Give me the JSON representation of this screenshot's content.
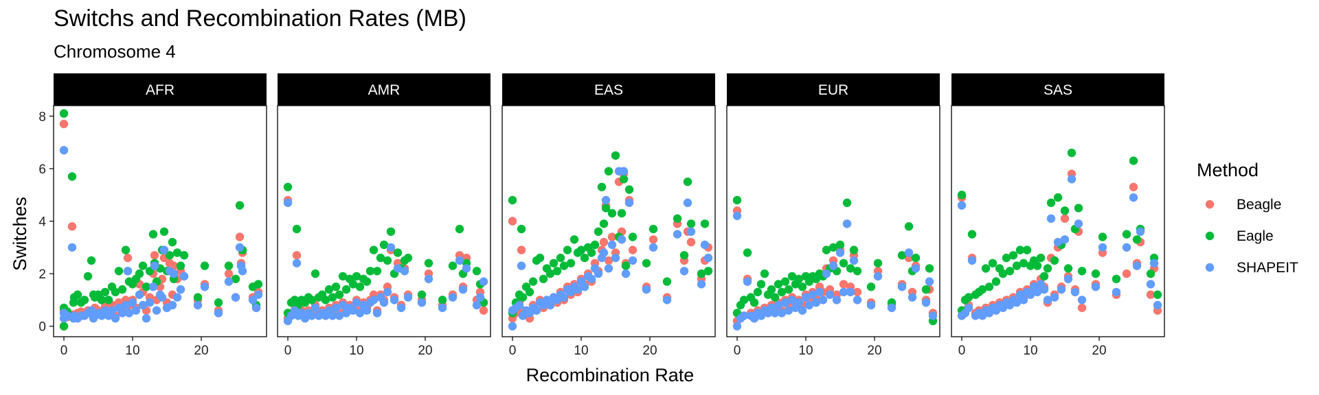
{
  "chart_data": {
    "type": "scatter",
    "title": "Switchs and Recombination Rates (MB)",
    "subtitle": "Chromosome 4",
    "xlabel": "Recombination Rate",
    "ylabel": "Switches",
    "xlim": [
      -1.5,
      29.5
    ],
    "ylim": [
      -0.4,
      8.4
    ],
    "xticks": [
      0,
      10,
      20
    ],
    "yticks": [
      0,
      2,
      4,
      6,
      8
    ],
    "grid": false,
    "legend": {
      "title": "Method",
      "position": "right"
    },
    "facets": [
      "AFR",
      "AMR",
      "EAS",
      "EUR",
      "SAS"
    ],
    "series": [
      {
        "name": "Beagle",
        "color": "#F8766D"
      },
      {
        "name": "Eagle",
        "color": "#00BA38"
      },
      {
        "name": "SHAPEIT",
        "color": "#619CFF"
      }
    ],
    "points": {
      "AFR": {
        "x": [
          0.0,
          0.0,
          0.0,
          0.5,
          1.2,
          1.4,
          1.5,
          2.0,
          2.5,
          3.0,
          3.5,
          4.0,
          4.3,
          4.5,
          5.0,
          5.5,
          6.0,
          6.5,
          7.0,
          7.5,
          8.0,
          8.5,
          9.0,
          9.3,
          9.5,
          10.0,
          10.5,
          11.0,
          11.5,
          12.0,
          12.5,
          13.0,
          13.2,
          13.5,
          14.0,
          14.3,
          14.6,
          15.0,
          15.4,
          15.8,
          16.0,
          16.5,
          17.0,
          17.5,
          19.5,
          20.5,
          22.5,
          24.0,
          25.0,
          25.6,
          25.8,
          26.0,
          27.5,
          28.0,
          28.3
        ],
        "beagle": [
          0.0,
          7.7,
          0.6,
          0.35,
          3.8,
          0.4,
          0.45,
          0.5,
          0.55,
          0.5,
          0.6,
          0.5,
          0.3,
          0.7,
          0.6,
          0.55,
          0.75,
          0.55,
          0.8,
          0.4,
          0.9,
          0.6,
          1.0,
          2.6,
          0.8,
          1.0,
          0.7,
          1.6,
          1.3,
          0.6,
          1.1,
          2.0,
          2.7,
          1.0,
          1.5,
          1.8,
          2.6,
          0.9,
          2.4,
          1.2,
          2.3,
          1.8,
          2.1,
          1.9,
          1.0,
          1.6,
          0.6,
          2.0,
          1.1,
          3.4,
          2.4,
          2.8,
          1.1,
          0.7,
          1.3
        ],
        "eagle": [
          0.0,
          8.1,
          0.7,
          0.55,
          5.7,
          0.9,
          1.1,
          1.2,
          0.9,
          1.0,
          1.9,
          2.5,
          1.2,
          1.1,
          1.2,
          1.0,
          1.3,
          1.0,
          1.5,
          1.3,
          2.1,
          1.4,
          2.9,
          2.1,
          1.7,
          1.6,
          1.8,
          2.0,
          2.3,
          1.5,
          2.1,
          3.5,
          2.4,
          1.7,
          2.2,
          2.9,
          3.6,
          2.1,
          2.7,
          3.2,
          1.8,
          2.8,
          2.3,
          2.7,
          1.1,
          2.3,
          0.9,
          2.3,
          1.8,
          4.6,
          2.3,
          2.9,
          1.5,
          0.8,
          1.6
        ],
        "shapeit": [
          6.7,
          0.5,
          0.3,
          0.4,
          3.0,
          0.3,
          0.4,
          0.3,
          0.4,
          0.4,
          0.5,
          0.6,
          0.3,
          0.4,
          0.5,
          0.4,
          0.6,
          0.4,
          0.6,
          0.3,
          0.7,
          0.5,
          0.8,
          2.1,
          0.5,
          0.9,
          0.6,
          1.2,
          0.8,
          0.3,
          0.9,
          1.5,
          2.3,
          0.6,
          1.2,
          1.1,
          2.9,
          0.7,
          2.1,
          0.8,
          2.0,
          1.1,
          1.4,
          1.9,
          0.8,
          1.5,
          0.5,
          1.7,
          1.1,
          3.0,
          2.3,
          2.1,
          1.0,
          0.7,
          1.2
        ]
      },
      "AMR": {
        "x": [
          0.0,
          0.0,
          0.5,
          1.0,
          1.3,
          1.5,
          2.0,
          2.5,
          3.0,
          3.5,
          4.0,
          4.5,
          5.0,
          5.5,
          6.0,
          6.5,
          7.0,
          7.5,
          8.0,
          8.5,
          9.0,
          9.5,
          10.0,
          10.5,
          11.0,
          11.5,
          12.0,
          12.5,
          13.0,
          13.5,
          14.0,
          14.5,
          15.0,
          15.5,
          16.0,
          16.5,
          17.0,
          17.5,
          19.5,
          20.5,
          22.5,
          24.0,
          25.0,
          25.5,
          26.0,
          27.5,
          28.0,
          28.5
        ],
        "beagle": [
          4.8,
          0.3,
          0.5,
          0.8,
          2.7,
          0.5,
          0.6,
          0.4,
          0.6,
          0.5,
          0.8,
          0.5,
          0.6,
          0.5,
          0.7,
          0.5,
          0.8,
          0.5,
          0.9,
          0.6,
          0.8,
          0.7,
          1.0,
          0.6,
          0.9,
          0.7,
          1.0,
          1.2,
          0.6,
          1.2,
          1.0,
          1.5,
          2.9,
          1.1,
          2.4,
          0.8,
          2.2,
          1.2,
          1.0,
          2.0,
          0.8,
          1.2,
          2.7,
          1.5,
          2.6,
          1.0,
          1.3,
          0.6
        ],
        "eagle": [
          5.3,
          0.5,
          0.9,
          1.0,
          3.7,
          0.8,
          1.0,
          0.9,
          1.1,
          1.0,
          2.0,
          1.1,
          1.2,
          1.0,
          1.4,
          1.1,
          1.5,
          1.2,
          1.9,
          1.4,
          1.8,
          1.6,
          1.9,
          1.5,
          1.8,
          1.7,
          2.1,
          2.9,
          2.1,
          2.6,
          3.1,
          2.5,
          3.6,
          2.0,
          2.8,
          2.2,
          2.5,
          2.6,
          1.2,
          2.4,
          1.0,
          2.3,
          3.7,
          2.0,
          2.4,
          2.1,
          1.6,
          0.9
        ],
        "shapeit": [
          4.7,
          0.2,
          0.4,
          0.6,
          2.4,
          0.4,
          0.5,
          0.3,
          0.5,
          0.4,
          0.7,
          0.4,
          0.5,
          0.4,
          0.6,
          0.4,
          0.7,
          0.4,
          0.8,
          0.5,
          0.7,
          0.6,
          0.9,
          0.5,
          0.8,
          0.6,
          0.9,
          1.0,
          0.5,
          1.1,
          0.9,
          1.3,
          3.0,
          1.0,
          2.2,
          0.7,
          2.1,
          1.1,
          0.9,
          1.8,
          0.7,
          1.1,
          2.5,
          1.4,
          2.2,
          0.8,
          1.1,
          1.7
        ]
      },
      "EAS": {
        "x": [
          0.0,
          0.0,
          0.5,
          1.0,
          1.3,
          1.5,
          2.0,
          2.5,
          3.0,
          3.5,
          4.0,
          4.5,
          5.0,
          5.5,
          6.0,
          6.5,
          7.0,
          7.5,
          8.0,
          8.5,
          9.0,
          9.5,
          10.0,
          10.5,
          11.0,
          11.5,
          12.0,
          12.5,
          13.0,
          13.3,
          13.6,
          14.0,
          14.5,
          15.0,
          15.5,
          15.9,
          16.2,
          16.5,
          17.0,
          17.5,
          19.5,
          20.5,
          22.5,
          24.0,
          25.0,
          25.5,
          26.0,
          27.5,
          28.0,
          28.5
        ],
        "beagle": [
          4.0,
          0.3,
          0.5,
          0.9,
          2.9,
          0.6,
          0.5,
          0.3,
          0.8,
          0.6,
          1.0,
          0.7,
          0.9,
          0.8,
          1.1,
          0.9,
          1.3,
          1.0,
          1.5,
          1.2,
          1.6,
          1.3,
          1.8,
          1.6,
          2.0,
          1.7,
          2.4,
          2.1,
          2.9,
          3.2,
          4.6,
          2.5,
          3.4,
          2.8,
          5.5,
          3.6,
          5.8,
          2.4,
          4.8,
          2.9,
          1.5,
          3.3,
          1.1,
          3.9,
          2.5,
          3.6,
          3.2,
          1.8,
          2.5,
          3.0
        ],
        "eagle": [
          4.8,
          0.5,
          0.9,
          1.2,
          3.7,
          1.1,
          1.5,
          1.3,
          1.7,
          2.5,
          2.6,
          1.8,
          2.2,
          2.0,
          2.4,
          2.1,
          2.6,
          2.3,
          2.9,
          2.4,
          3.3,
          2.8,
          2.9,
          2.6,
          3.0,
          2.8,
          3.1,
          3.6,
          5.3,
          3.9,
          4.5,
          5.9,
          4.3,
          6.5,
          3.4,
          4.3,
          5.6,
          2.3,
          5.2,
          3.4,
          2.4,
          3.7,
          1.7,
          4.1,
          2.7,
          5.5,
          3.9,
          2.0,
          3.9,
          2.1
        ],
        "shapeit": [
          0.0,
          0.6,
          0.7,
          0.8,
          2.3,
          0.4,
          0.6,
          0.5,
          0.7,
          0.6,
          0.9,
          0.8,
          1.0,
          0.8,
          1.1,
          1.0,
          1.2,
          1.1,
          1.4,
          1.3,
          1.5,
          1.4,
          1.7,
          1.5,
          1.9,
          1.8,
          2.2,
          2.0,
          2.6,
          2.8,
          4.8,
          2.2,
          3.1,
          2.6,
          5.9,
          3.3,
          5.9,
          2.0,
          4.7,
          2.5,
          1.4,
          3.0,
          1.0,
          3.5,
          2.1,
          4.7,
          3.6,
          1.6,
          3.1,
          2.6
        ]
      },
      "EUR": {
        "x": [
          0.0,
          0.0,
          0.5,
          1.0,
          1.5,
          2.0,
          2.5,
          3.0,
          3.5,
          4.0,
          4.5,
          5.0,
          5.5,
          6.0,
          6.5,
          7.0,
          7.5,
          8.0,
          8.5,
          9.0,
          9.5,
          10.0,
          10.5,
          11.0,
          11.5,
          12.0,
          12.5,
          13.0,
          13.5,
          14.0,
          14.5,
          15.0,
          15.5,
          16.0,
          16.5,
          17.0,
          17.5,
          19.5,
          20.5,
          22.5,
          24.0,
          25.0,
          25.5,
          26.0,
          27.5,
          28.0,
          28.5
        ],
        "beagle": [
          4.4,
          0.2,
          0.3,
          0.4,
          1.8,
          0.5,
          0.3,
          0.6,
          0.5,
          0.7,
          0.6,
          0.8,
          0.7,
          0.9,
          0.6,
          1.0,
          0.8,
          1.1,
          0.9,
          1.0,
          0.8,
          1.2,
          1.0,
          1.3,
          1.1,
          1.5,
          1.3,
          2.2,
          1.4,
          2.5,
          1.2,
          2.9,
          1.6,
          3.9,
          1.5,
          2.7,
          1.3,
          0.9,
          2.1,
          0.8,
          1.6,
          2.6,
          1.3,
          2.3,
          1.0,
          1.4,
          0.5
        ],
        "eagle": [
          4.8,
          0.5,
          0.8,
          1.0,
          2.8,
          1.1,
          0.9,
          1.3,
          1.6,
          2.0,
          1.2,
          1.4,
          1.1,
          1.6,
          1.3,
          1.7,
          1.4,
          1.9,
          1.6,
          1.8,
          1.5,
          1.9,
          1.7,
          1.9,
          1.8,
          2.0,
          1.9,
          2.9,
          2.2,
          3.0,
          2.1,
          3.1,
          2.4,
          4.7,
          2.2,
          2.9,
          2.1,
          1.5,
          2.4,
          0.9,
          2.7,
          3.8,
          2.1,
          2.6,
          1.4,
          2.2,
          0.2
        ],
        "shapeit": [
          4.2,
          0.0,
          0.3,
          0.4,
          1.7,
          0.4,
          0.3,
          0.5,
          0.4,
          0.6,
          0.5,
          0.7,
          0.5,
          0.8,
          0.5,
          0.9,
          0.6,
          1.0,
          0.7,
          0.9,
          0.6,
          1.1,
          0.8,
          1.2,
          0.9,
          1.3,
          1.0,
          2.0,
          1.2,
          2.3,
          1.0,
          2.8,
          1.3,
          3.9,
          1.3,
          2.5,
          1.0,
          0.8,
          1.9,
          0.7,
          1.5,
          2.8,
          1.1,
          2.2,
          0.9,
          1.7,
          0.4
        ]
      },
      "SAS": {
        "x": [
          0.0,
          0.0,
          0.5,
          1.0,
          1.5,
          2.0,
          2.5,
          3.0,
          3.5,
          4.0,
          4.5,
          5.0,
          5.5,
          6.0,
          6.5,
          7.0,
          7.5,
          8.0,
          8.5,
          9.0,
          9.5,
          10.0,
          10.5,
          11.0,
          11.5,
          12.0,
          12.5,
          13.0,
          13.5,
          14.0,
          14.5,
          15.0,
          15.5,
          16.0,
          16.5,
          17.0,
          17.5,
          19.5,
          20.5,
          22.5,
          24.0,
          25.0,
          25.5,
          26.0,
          27.5,
          28.0,
          28.5
        ],
        "beagle": [
          4.9,
          0.4,
          0.6,
          0.8,
          2.6,
          0.5,
          0.6,
          0.5,
          0.7,
          0.6,
          0.8,
          0.7,
          0.9,
          0.8,
          1.0,
          0.9,
          1.1,
          1.0,
          1.3,
          1.1,
          1.4,
          1.3,
          1.6,
          1.4,
          1.8,
          1.5,
          0.9,
          2.6,
          1.2,
          3.0,
          1.5,
          4.1,
          1.9,
          5.8,
          1.4,
          3.6,
          0.7,
          1.6,
          2.8,
          1.2,
          2.0,
          5.3,
          2.4,
          3.2,
          1.2,
          2.2,
          0.6
        ],
        "eagle": [
          5.0,
          0.6,
          1.0,
          1.1,
          3.5,
          1.2,
          1.3,
          1.4,
          2.2,
          1.5,
          2.4,
          1.7,
          2.2,
          2.0,
          2.6,
          2.1,
          2.7,
          2.3,
          2.9,
          2.4,
          2.9,
          2.3,
          2.5,
          2.3,
          2.6,
          1.9,
          2.2,
          4.7,
          2.5,
          4.9,
          3.1,
          4.4,
          2.2,
          6.6,
          3.7,
          4.5,
          2.1,
          2.0,
          3.4,
          1.8,
          3.5,
          6.3,
          3.3,
          3.7,
          2.0,
          2.6,
          1.2
        ],
        "shapeit": [
          4.6,
          0.4,
          0.5,
          0.7,
          2.5,
          0.4,
          0.5,
          0.4,
          0.6,
          0.5,
          0.7,
          0.6,
          0.8,
          0.7,
          0.9,
          0.8,
          1.0,
          0.9,
          1.2,
          1.0,
          1.3,
          1.2,
          1.5,
          1.3,
          1.6,
          1.4,
          1.0,
          4.1,
          1.1,
          3.2,
          1.4,
          3.3,
          1.8,
          5.6,
          1.3,
          3.9,
          1.0,
          1.5,
          3.0,
          1.3,
          3.0,
          4.9,
          2.3,
          3.6,
          1.6,
          2.4,
          0.8
        ]
      }
    }
  }
}
